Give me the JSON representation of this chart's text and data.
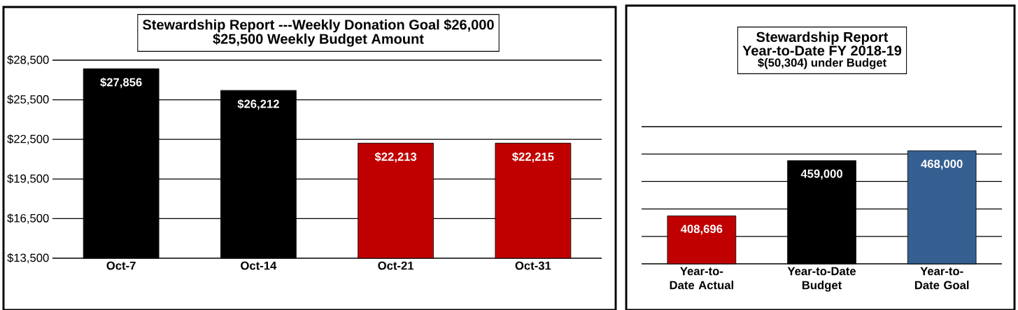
{
  "chart_data": [
    {
      "type": "bar",
      "title": "Stewardship Report ---Weekly Donation Goal $26,000",
      "subtitle": "$25,500 Weekly Budget Amount",
      "categories": [
        "Oct-7",
        "Oct-14",
        "Oct-21",
        "Oct-31"
      ],
      "values": [
        27856,
        26212,
        22213,
        22215
      ],
      "colors": [
        "#000000",
        "#000000",
        "#c00000",
        "#c00000"
      ],
      "value_labels": [
        "$27,856",
        "$26,212",
        "$22,213",
        "$22,215"
      ],
      "ylim": [
        13500,
        28500
      ],
      "yticks": [
        {
          "value": 13500,
          "label": "$13,500"
        },
        {
          "value": 16500,
          "label": "$16,500"
        },
        {
          "value": 19500,
          "label": "$19,500"
        },
        {
          "value": 22500,
          "label": "$22,500"
        },
        {
          "value": 25500,
          "label": "$25,500"
        },
        {
          "value": 28500,
          "label": "$28,500"
        }
      ],
      "grid": "y"
    },
    {
      "type": "bar",
      "title": "Stewardship Report",
      "subtitle": "Year-to-Date  FY 2018-19",
      "annotations": [
        "$(50,304) under Budget"
      ],
      "categories": [
        "Year-to-Date Actual",
        "Year-to-Date Budget",
        "Year-to-Date Goal"
      ],
      "values": [
        408696,
        459000,
        468000
      ],
      "colors": [
        "#c00000",
        "#000000",
        "#365f91"
      ],
      "value_labels": [
        "408,696",
        "459,000",
        "468,000"
      ],
      "ylim": [
        365000,
        490000
      ],
      "yticks": [
        {
          "value": 365000,
          "label": null
        },
        {
          "value": 390000,
          "label": null
        },
        {
          "value": 415000,
          "label": null
        },
        {
          "value": 440000,
          "label": null
        },
        {
          "value": 465000,
          "label": null
        },
        {
          "value": 490000,
          "label": null
        }
      ],
      "grid": "y",
      "tick_labels": "x"
    }
  ]
}
